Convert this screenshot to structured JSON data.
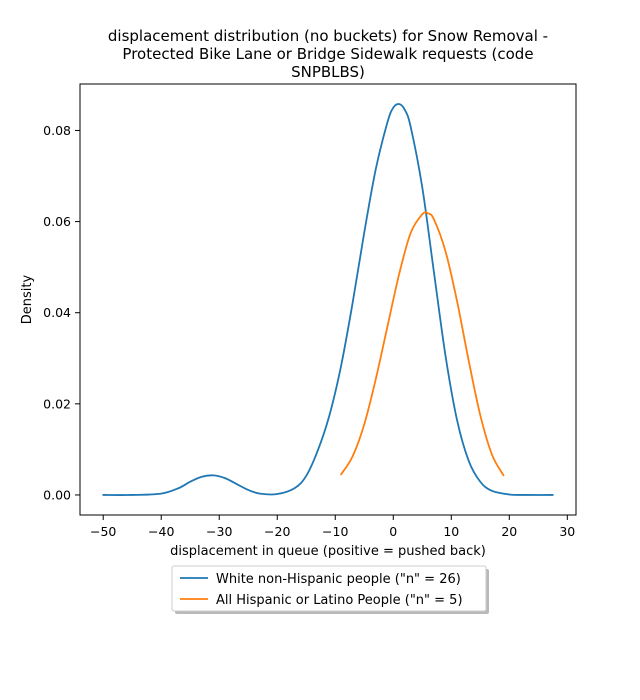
{
  "chart_data": {
    "type": "line",
    "title_lines": [
      "displacement distribution (no buckets)  for Snow Removal -",
      "Protected Bike Lane or Bridge Sidewalk requests (code",
      "SNPBLBS)"
    ],
    "xlabel": "displacement in queue (positive = pushed back)",
    "ylabel": "Density",
    "xlim": [
      -54,
      31.5
    ],
    "ylim": [
      -0.0044,
      0.0902
    ],
    "x_ticks": [
      -50,
      -40,
      -30,
      -20,
      -10,
      0,
      10,
      20,
      30
    ],
    "y_ticks": [
      0.0,
      0.02,
      0.04,
      0.06,
      0.08
    ],
    "y_tick_labels": [
      "0.00",
      "0.02",
      "0.04",
      "0.06",
      "0.08"
    ],
    "grid": false,
    "legend_position": "below",
    "series": [
      {
        "name": "White non-Hispanic people (\"n\" = 26)",
        "color": "#1f77b4",
        "x": [
          -50,
          -45,
          -40,
          -37,
          -35,
          -33,
          -31,
          -29,
          -27,
          -25,
          -23,
          -20,
          -17,
          -15,
          -13,
          -11,
          -9,
          -7,
          -5,
          -3,
          -1,
          0,
          1,
          2,
          3,
          5,
          7,
          9,
          11,
          13,
          15,
          17,
          20,
          23,
          27.5
        ],
        "y": [
          0.0,
          0.0,
          0.0003,
          0.0015,
          0.0029,
          0.004,
          0.0043,
          0.0037,
          0.0024,
          0.0011,
          0.0003,
          0.0002,
          0.0015,
          0.0042,
          0.0098,
          0.0175,
          0.0283,
          0.0422,
          0.0576,
          0.0716,
          0.0818,
          0.085,
          0.0858,
          0.0845,
          0.0808,
          0.0675,
          0.049,
          0.0306,
          0.0164,
          0.0075,
          0.0029,
          0.0009,
          0.0001,
          0.0,
          0.0
        ]
      },
      {
        "name": "All Hispanic or Latino People (\"n\" = 5)",
        "color": "#ff7f0e",
        "x": [
          -9,
          -7,
          -5,
          -3,
          -1,
          1,
          3,
          5,
          6,
          7,
          9,
          11,
          13,
          15,
          17,
          19
        ],
        "y": [
          0.0045,
          0.0085,
          0.0155,
          0.0255,
          0.037,
          0.0484,
          0.0575,
          0.0616,
          0.0618,
          0.0605,
          0.0535,
          0.0425,
          0.0295,
          0.0175,
          0.0089,
          0.0043
        ]
      }
    ]
  }
}
